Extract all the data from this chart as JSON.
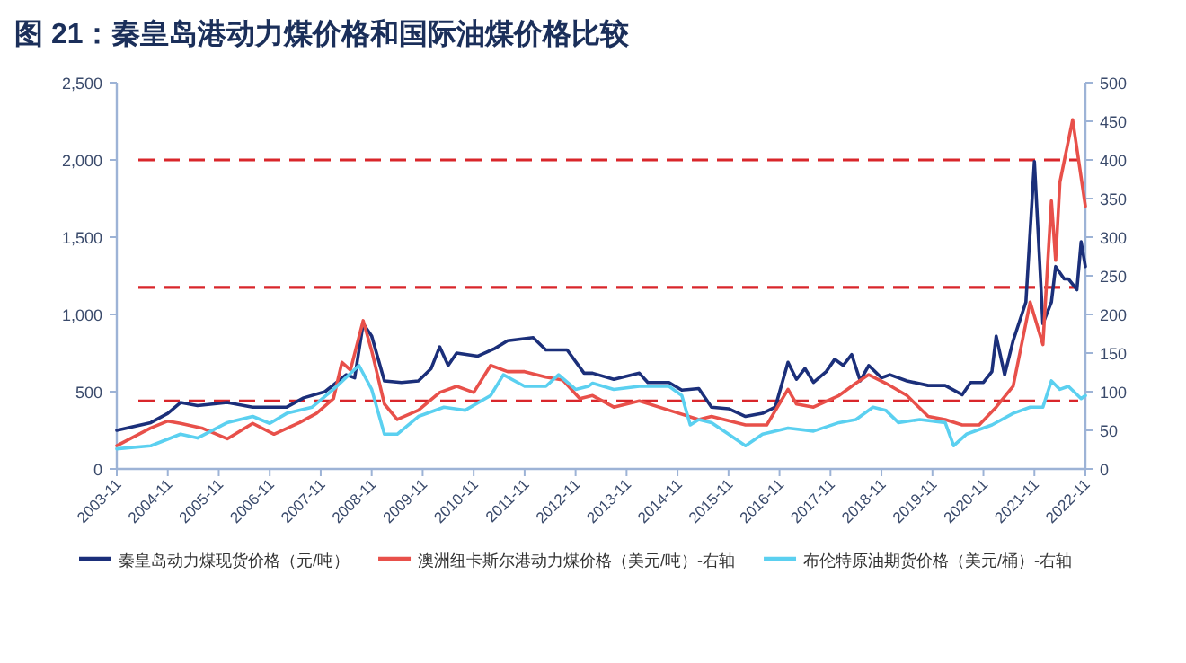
{
  "chart_data": {
    "type": "line",
    "title": "图 21：秦皇岛港动力煤价格和国际油煤价格比较",
    "xlim": [
      "2003-11",
      "2022-11"
    ],
    "xticks": [
      "2003-11",
      "2004-11",
      "2005-11",
      "2006-11",
      "2007-11",
      "2008-11",
      "2009-11",
      "2010-11",
      "2011-11",
      "2012-11",
      "2013-11",
      "2014-11",
      "2015-11",
      "2016-11",
      "2017-11",
      "2018-11",
      "2019-11",
      "2020-11",
      "2021-11",
      "2022-11"
    ],
    "ylim": [
      0,
      2500
    ],
    "yticks": [
      0,
      500,
      {
        "value": 1000,
        "label": "1,000"
      },
      {
        "value": 1500,
        "label": "1,500"
      },
      {
        "value": 2000,
        "label": "2,000"
      },
      {
        "value": 2500,
        "label": "2,500"
      }
    ],
    "y2lim": [
      0,
      500
    ],
    "y2ticks": [
      0,
      50,
      100,
      150,
      200,
      250,
      300,
      350,
      400,
      450,
      500
    ],
    "legend": "bottom",
    "line_style": "solid",
    "ref_lines": [
      {
        "axis": "y2",
        "value": 400,
        "color": "#d9262b",
        "line_style": "dashed"
      },
      {
        "axis": "y2",
        "value": 235,
        "color": "#d9262b",
        "line_style": "dashed"
      },
      {
        "axis": "y2",
        "value": 88,
        "color": "#d9262b",
        "line_style": "dashed"
      }
    ],
    "series": [
      {
        "name": "秦皇岛动力煤现货价格（元/吨）",
        "color": "#1b2f7a",
        "x": [
          "2003-11",
          "2004-07",
          "2004-11",
          "2005-02",
          "2005-06",
          "2006-01",
          "2006-07",
          "2007-03",
          "2007-07",
          "2007-12",
          "2008-05",
          "2008-07",
          "2008-09",
          "2008-11",
          "2009-02",
          "2009-06",
          "2009-10",
          "2010-01",
          "2010-03",
          "2010-05",
          "2010-07",
          "2010-12",
          "2011-04",
          "2011-07",
          "2012-01",
          "2012-04",
          "2012-09",
          "2013-01",
          "2013-03",
          "2013-08",
          "2014-02",
          "2014-04",
          "2014-09",
          "2014-12",
          "2015-04",
          "2015-07",
          "2015-11",
          "2016-03",
          "2016-07",
          "2016-10",
          "2017-01",
          "2017-03",
          "2017-05",
          "2017-07",
          "2017-10",
          "2017-12",
          "2018-02",
          "2018-04",
          "2018-06",
          "2018-08",
          "2018-11",
          "2019-01",
          "2019-05",
          "2019-10",
          "2020-02",
          "2020-06",
          "2020-08",
          "2020-11",
          "2021-01",
          "2021-02",
          "2021-04",
          "2021-06",
          "2021-09",
          "2021-11",
          "2022-01",
          "2022-03",
          "2022-04",
          "2022-06",
          "2022-07",
          "2022-09",
          "2022-10",
          "2022-11"
        ],
        "values": [
          250,
          300,
          360,
          430,
          410,
          430,
          400,
          400,
          460,
          500,
          610,
          590,
          940,
          860,
          570,
          560,
          570,
          650,
          790,
          670,
          750,
          730,
          780,
          830,
          850,
          770,
          770,
          620,
          620,
          580,
          620,
          560,
          560,
          510,
          520,
          400,
          390,
          340,
          360,
          400,
          690,
          580,
          650,
          560,
          630,
          710,
          670,
          740,
          570,
          670,
          590,
          610,
          570,
          540,
          540,
          480,
          560,
          560,
          630,
          860,
          610,
          830,
          1080,
          1990,
          940,
          1080,
          1310,
          1230,
          1230,
          1160,
          1470,
          1310
        ]
      },
      {
        "name": "澳洲纽卡斯尔港动力煤价格（美元/吨）-右轴",
        "color": "#e8504a",
        "axis": "y2",
        "x": [
          "2003-11",
          "2004-07",
          "2004-11",
          "2005-02",
          "2005-07",
          "2006-01",
          "2006-07",
          "2006-12",
          "2007-06",
          "2007-10",
          "2008-02",
          "2008-04",
          "2008-06",
          "2008-09",
          "2008-11",
          "2009-02",
          "2009-05",
          "2009-10",
          "2010-03",
          "2010-07",
          "2010-11",
          "2011-03",
          "2011-07",
          "2011-11",
          "2012-04",
          "2012-08",
          "2012-12",
          "2013-03",
          "2013-08",
          "2014-02",
          "2014-09",
          "2015-04",
          "2015-07",
          "2016-03",
          "2016-08",
          "2017-01",
          "2017-03",
          "2017-07",
          "2018-01",
          "2018-05",
          "2018-08",
          "2018-12",
          "2019-05",
          "2019-10",
          "2020-02",
          "2020-06",
          "2020-10",
          "2021-02",
          "2021-06",
          "2021-10",
          "2022-01",
          "2022-03",
          "2022-04",
          "2022-05",
          "2022-08",
          "2022-11"
        ],
        "values": [
          30,
          53,
          62,
          59,
          53,
          39,
          59,
          45,
          60,
          72,
          91,
          138,
          128,
          192,
          153,
          84,
          64,
          76,
          99,
          107,
          99,
          134,
          126,
          126,
          119,
          115,
          91,
          95,
          80,
          88,
          76,
          64,
          68,
          57,
          57,
          103,
          84,
          80,
          95,
          111,
          122,
          111,
          95,
          68,
          64,
          57,
          57,
          80,
          107,
          216,
          161,
          347,
          270,
          371,
          452,
          340
        ]
      },
      {
        "name": "布伦特原油期货价格（美元/桶）-右轴",
        "color": "#5bd0f0",
        "axis": "y2",
        "x": [
          "2003-11",
          "2004-07",
          "2005-02",
          "2005-06",
          "2006-01",
          "2006-07",
          "2006-11",
          "2007-03",
          "2007-09",
          "2008-02",
          "2008-08",
          "2008-11",
          "2009-02",
          "2009-05",
          "2009-10",
          "2010-04",
          "2010-09",
          "2011-03",
          "2011-06",
          "2011-11",
          "2012-04",
          "2012-07",
          "2012-11",
          "2013-02",
          "2013-03",
          "2013-08",
          "2014-02",
          "2014-09",
          "2014-12",
          "2015-02",
          "2015-04",
          "2015-07",
          "2015-11",
          "2016-03",
          "2016-07",
          "2017-01",
          "2017-07",
          "2018-01",
          "2018-05",
          "2018-09",
          "2018-12",
          "2019-03",
          "2019-08",
          "2020-02",
          "2020-04",
          "2020-07",
          "2021-01",
          "2021-06",
          "2021-10",
          "2022-01",
          "2022-03",
          "2022-05",
          "2022-07",
          "2022-10",
          "2022-11"
        ],
        "values": [
          26,
          30,
          45,
          40,
          60,
          68,
          59,
          72,
          80,
          103,
          134,
          103,
          45,
          45,
          68,
          80,
          76,
          95,
          122,
          107,
          107,
          122,
          103,
          107,
          111,
          103,
          107,
          107,
          95,
          57,
          64,
          60,
          45,
          30,
          45,
          53,
          49,
          60,
          64,
          80,
          76,
          60,
          64,
          60,
          30,
          45,
          57,
          72,
          80,
          80,
          114,
          103,
          107,
          91,
          95
        ]
      }
    ]
  }
}
